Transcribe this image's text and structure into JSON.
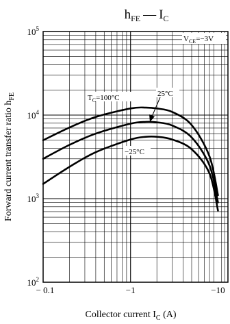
{
  "chart_data": {
    "type": "line",
    "title": "hFE — IC",
    "title_parts": {
      "main": "h",
      "main_sub": "FE",
      "dash": "—",
      "second": "I",
      "second_sub": "C"
    },
    "xlabel": "Collector current  IC  (A)",
    "xlabel_parts": {
      "text": "Collector current  I",
      "sub": "C",
      "unit": "  (A)"
    },
    "ylabel": "Forward current transfer ratio  hFE",
    "ylabel_parts": {
      "text": "Forward current transfer ratio  h",
      "sub": "FE"
    },
    "x_scale": "log",
    "y_scale": "log",
    "xlim": [
      -0.1,
      -13
    ],
    "ylim": [
      100,
      100000
    ],
    "x_ticks": [
      {
        "value": -0.1,
        "label": "− 0.1"
      },
      {
        "value": -1,
        "label": "−1"
      },
      {
        "value": -10,
        "label": "−10"
      }
    ],
    "y_ticks": [
      {
        "value": 100,
        "base": "10",
        "exp": "2"
      },
      {
        "value": 1000,
        "base": "10",
        "exp": "3"
      },
      {
        "value": 10000,
        "base": "10",
        "exp": "4"
      },
      {
        "value": 100000,
        "base": "10",
        "exp": "5"
      }
    ],
    "grid": true,
    "condition": {
      "text": "V",
      "sub": "CE",
      "value": "=−3V"
    },
    "series": [
      {
        "name": "TC=100°C",
        "label_parts": {
          "text": "T",
          "sub": "C",
          "value": "=100°C"
        },
        "x": [
          -0.1,
          -0.2,
          -0.4,
          -1,
          -1.5,
          -2,
          -3,
          -5,
          -8,
          -10
        ],
        "y": [
          5000,
          7100,
          9500,
          12000,
          12300,
          12000,
          10900,
          7600,
          3200,
          1100
        ]
      },
      {
        "name": "25°C",
        "label_parts": {
          "text": "25°C"
        },
        "x": [
          -0.1,
          -0.2,
          -0.4,
          -1,
          -1.5,
          -2,
          -3,
          -5,
          -8,
          -10
        ],
        "y": [
          3000,
          4400,
          6000,
          7900,
          8300,
          8200,
          7500,
          5400,
          2500,
          900
        ]
      },
      {
        "name": "−25°C",
        "label_parts": {
          "text": "−25°C"
        },
        "x": [
          -0.1,
          -0.2,
          -0.4,
          -1,
          -1.5,
          -2,
          -3,
          -5,
          -8,
          -10
        ],
        "y": [
          1500,
          2400,
          3600,
          5100,
          5500,
          5500,
          5100,
          3900,
          2000,
          720
        ]
      }
    ]
  }
}
